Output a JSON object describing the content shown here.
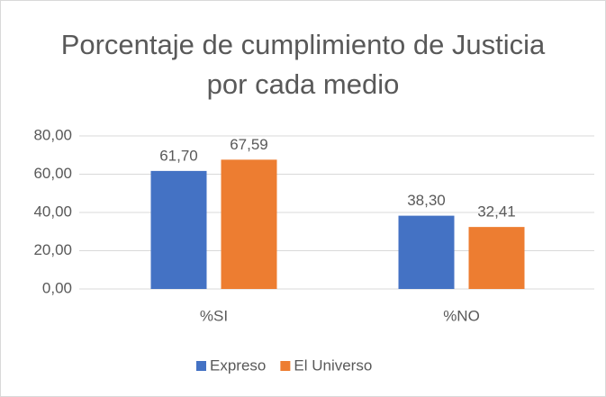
{
  "chart_data": {
    "type": "bar",
    "title": "Porcentaje de cumplimiento de Justicia por cada medio",
    "categories": [
      "%SI",
      "%NO"
    ],
    "series": [
      {
        "name": "Expreso",
        "color": "#4472c4",
        "values": [
          61.7,
          38.3
        ],
        "value_labels": [
          "61,70",
          "38,30"
        ]
      },
      {
        "name": "El Universo",
        "color": "#ed7d31",
        "values": [
          67.59,
          32.41
        ],
        "value_labels": [
          "67,59",
          "32,41"
        ]
      }
    ],
    "ylim": [
      0,
      80
    ],
    "yticks": [
      {
        "value": 0,
        "label": "0,00"
      },
      {
        "value": 20,
        "label": "20,00"
      },
      {
        "value": 40,
        "label": "40,00"
      },
      {
        "value": 60,
        "label": "60,00"
      },
      {
        "value": 80,
        "label": "80,00"
      }
    ],
    "grid": true,
    "legend": "bottom"
  }
}
